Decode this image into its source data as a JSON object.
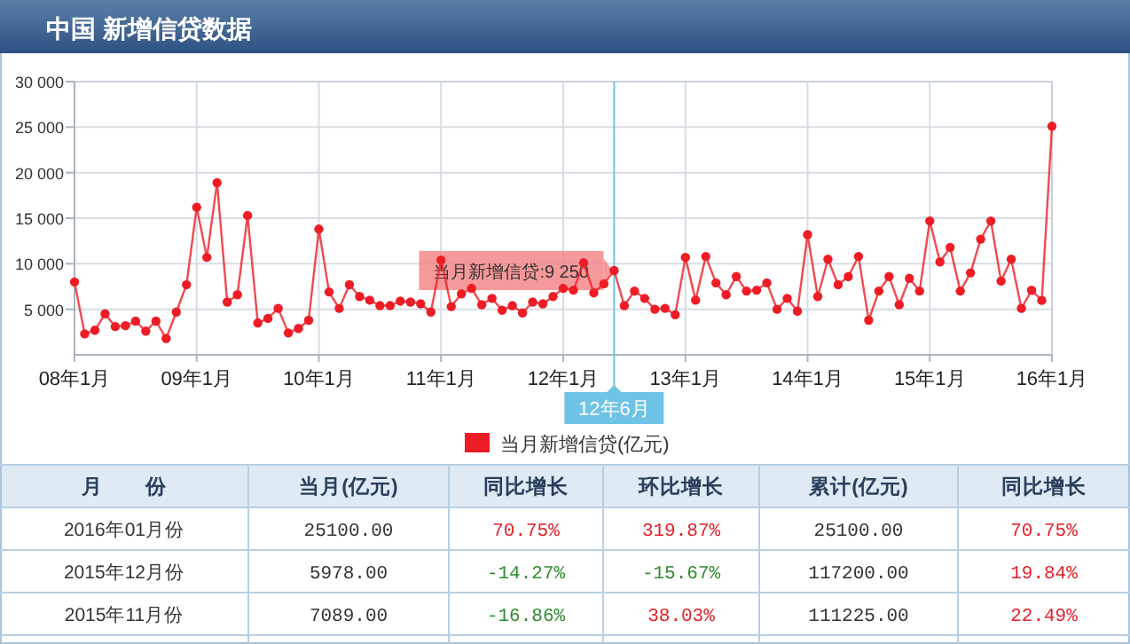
{
  "chart_data": {
    "type": "line",
    "title": "中国  新增信贷数据",
    "x": [
      "2008-01",
      "2008-02",
      "2008-03",
      "2008-04",
      "2008-05",
      "2008-06",
      "2008-07",
      "2008-08",
      "2008-09",
      "2008-10",
      "2008-11",
      "2008-12",
      "2009-01",
      "2009-02",
      "2009-03",
      "2009-04",
      "2009-05",
      "2009-06",
      "2009-07",
      "2009-08",
      "2009-09",
      "2009-10",
      "2009-11",
      "2009-12",
      "2010-01",
      "2010-02",
      "2010-03",
      "2010-04",
      "2010-05",
      "2010-06",
      "2010-07",
      "2010-08",
      "2010-09",
      "2010-10",
      "2010-11",
      "2010-12",
      "2011-01",
      "2011-02",
      "2011-03",
      "2011-04",
      "2011-05",
      "2011-06",
      "2011-07",
      "2011-08",
      "2011-09",
      "2011-10",
      "2011-11",
      "2011-12",
      "2012-01",
      "2012-02",
      "2012-03",
      "2012-04",
      "2012-05",
      "2012-06",
      "2012-07",
      "2012-08",
      "2012-09",
      "2012-10",
      "2012-11",
      "2012-12",
      "2013-01",
      "2013-02",
      "2013-03",
      "2013-04",
      "2013-05",
      "2013-06",
      "2013-07",
      "2013-08",
      "2013-09",
      "2013-10",
      "2013-11",
      "2013-12",
      "2014-01",
      "2014-02",
      "2014-03",
      "2014-04",
      "2014-05",
      "2014-06",
      "2014-07",
      "2014-08",
      "2014-09",
      "2014-10",
      "2014-11",
      "2014-12",
      "2015-01",
      "2015-02",
      "2015-03",
      "2015-04",
      "2015-05",
      "2015-06",
      "2015-07",
      "2015-08",
      "2015-09",
      "2015-10",
      "2015-11",
      "2015-12",
      "2016-01"
    ],
    "series": [
      {
        "name": "当月新增信贷(亿元)",
        "color": "#ee1c25",
        "values": [
          8000,
          2300,
          2700,
          4500,
          3100,
          3200,
          3700,
          2600,
          3700,
          1800,
          4700,
          7700,
          16200,
          10700,
          18900,
          5800,
          6600,
          15300,
          3500,
          4000,
          5100,
          2400,
          2900,
          3800,
          13800,
          6900,
          5100,
          7700,
          6400,
          6000,
          5400,
          5400,
          5900,
          5800,
          5600,
          4700,
          10400,
          5300,
          6700,
          7300,
          5500,
          6200,
          4900,
          5400,
          4600,
          5800,
          5600,
          6400,
          7300,
          7100,
          10100,
          6800,
          7800,
          9250,
          5400,
          7000,
          6200,
          5000,
          5100,
          4400,
          10700,
          6000,
          10800,
          7900,
          6600,
          8600,
          7000,
          7100,
          7900,
          5000,
          6200,
          4800,
          13200,
          6400,
          10500,
          7700,
          8600,
          10800,
          3800,
          7000,
          8600,
          5500,
          8400,
          7000,
          14700,
          10200,
          11800,
          7000,
          9000,
          12700,
          14700,
          8100,
          10500,
          5100,
          7089,
          5978,
          25100
        ]
      }
    ],
    "xlim": [
      "2008-01",
      "2016-01"
    ],
    "xticks": [
      {
        "value": "2008-01",
        "label": "08年1月"
      },
      {
        "value": "2009-01",
        "label": "09年1月"
      },
      {
        "value": "2010-01",
        "label": "10年1月"
      },
      {
        "value": "2011-01",
        "label": "11年1月"
      },
      {
        "value": "2012-01",
        "label": "12年1月"
      },
      {
        "value": "2013-01",
        "label": "13年1月"
      },
      {
        "value": "2014-01",
        "label": "14年1月"
      },
      {
        "value": "2015-01",
        "label": "15年1月"
      },
      {
        "value": "2016-01",
        "label": "16年1月"
      }
    ],
    "ylim": [
      0,
      30000
    ],
    "yticks": [
      {
        "value": 5000,
        "label": "5 000"
      },
      {
        "value": 10000,
        "label": "10 000"
      },
      {
        "value": 15000,
        "label": "15 000"
      },
      {
        "value": 20000,
        "label": "20 000"
      },
      {
        "value": 25000,
        "label": "25 000"
      },
      {
        "value": 30000,
        "label": "30 000"
      }
    ],
    "grid": true,
    "marker": "circle",
    "legend": "bottom",
    "ref_lines": [
      {
        "axis": "x",
        "value": "2012-06",
        "label": "12年6月",
        "color": "#6ec3e6"
      }
    ],
    "annotations": [
      {
        "text": "当月新增信贷:9 250",
        "x": "2012-06",
        "y": 9250
      },
      "月　　份",
      "当月(亿元)",
      "同比增长",
      "环比增长",
      "累计(亿元)",
      "同比增长",
      "2016年01月份",
      "25100.00",
      "70.75%",
      "319.87%",
      "25100.00",
      "70.75%",
      "2015年12月份",
      "5978.00",
      "-14.27%",
      "-15.67%",
      "117200.00",
      "19.84%",
      "2015年11月份",
      "7089.00",
      "-16.86%",
      "38.03%",
      "111225.00",
      "22.49%"
    ]
  }
}
